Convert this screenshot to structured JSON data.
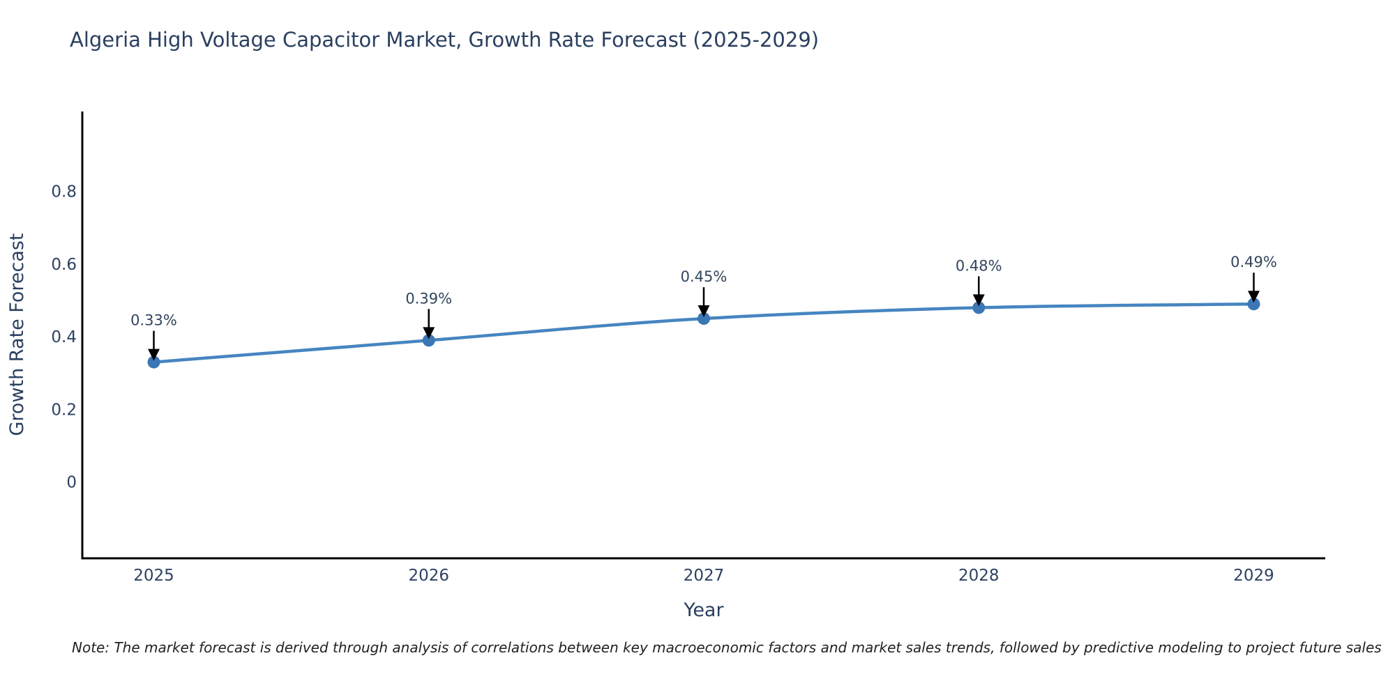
{
  "chart_data": {
    "type": "line",
    "title": "Algeria High Voltage Capacitor Market, Growth Rate Forecast (2025-2029)",
    "xlabel": "Year",
    "ylabel": "Growth Rate Forecast",
    "x": [
      2025,
      2026,
      2027,
      2028,
      2029
    ],
    "y": [
      0.33,
      0.39,
      0.45,
      0.48,
      0.49
    ],
    "point_labels": [
      "0.33%",
      "0.39%",
      "0.45%",
      "0.48%",
      "0.49%"
    ],
    "xticks": [
      2025,
      2026,
      2027,
      2028,
      2029
    ],
    "xtick_labels": [
      "2025",
      "2026",
      "2027",
      "2028",
      "2029"
    ],
    "yticks": [
      0,
      0.2,
      0.4,
      0.6,
      0.8
    ],
    "ytick_labels": [
      "0",
      "0.2",
      "0.4",
      "0.6",
      "0.8"
    ],
    "xlim": [
      2024.74,
      2029.26
    ],
    "ylim": [
      -0.21,
      1.02
    ],
    "grid": false,
    "legend": null,
    "line_shape": "spline",
    "colors": {
      "line": "#4685c0",
      "marker": "#3b77b5",
      "axis": "#000000",
      "annotation_arrow": "#000000",
      "title_text": "#2a3f5f",
      "tick_text": "#2e4262"
    },
    "note": "Note: The market forecast is derived through analysis of correlations between key macroeconomic factors and market sales trends, followed by predictive modeling to project future sales"
  }
}
